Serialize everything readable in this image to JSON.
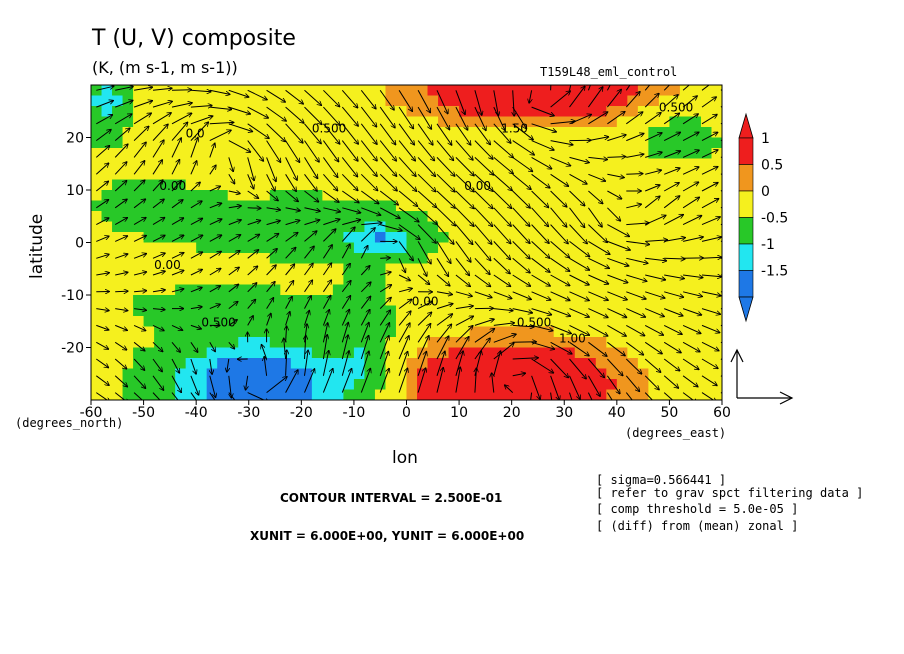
{
  "title": "T (U, V) composite",
  "subtitle": "(K, (m s-1, m s-1))",
  "run_label": "T159L48_eml_control",
  "xlabel": "lon",
  "ylabel": "latitude",
  "x_unit_label": "(degrees_east)",
  "y_unit_label": "(degrees_north)",
  "contour_interval_text": "CONTOUR INTERVAL = 2.500E-01",
  "unit_vector_text": "XUNIT = 6.000E+00, YUNIT = 6.000E+00",
  "info_lines": [
    "[ sigma=0.566441 ]",
    "[ refer to grav spct filtering data ]",
    "[ comp threshold = 5.0e-05 ]",
    "[ (diff) from (mean) zonal ]"
  ],
  "chart_data": {
    "type": "heatmap",
    "xlim": [
      -60,
      60
    ],
    "ylim": [
      -30,
      30
    ],
    "xticks": [
      -60,
      -50,
      -40,
      -30,
      -20,
      -10,
      0,
      10,
      20,
      30,
      40,
      50,
      60
    ],
    "yticks": [
      -20,
      -10,
      0,
      10,
      20
    ],
    "colorbar": {
      "labels": [
        "1",
        "0.5",
        "0",
        "-0.5",
        "-1",
        "-1.5"
      ],
      "levels": [
        -1.5,
        -1,
        -0.5,
        0,
        0.5,
        1
      ],
      "colors": [
        "#1e78e6",
        "#22e6f0",
        "#28c828",
        "#f5f01e",
        "#f0961e",
        "#ee1e1e"
      ]
    },
    "contour_labels": [
      {
        "text": "0.500",
        "x": 48,
        "y": 25
      },
      {
        "text": "0.500",
        "x": -18,
        "y": 21
      },
      {
        "text": "1.50",
        "x": 18,
        "y": 21
      },
      {
        "text": "0.0",
        "x": -42,
        "y": 20
      },
      {
        "text": "0.00",
        "x": -47,
        "y": 10
      },
      {
        "text": "0.00",
        "x": 11,
        "y": 10
      },
      {
        "text": "0.00",
        "x": -48,
        "y": -5
      },
      {
        "text": "0.00",
        "x": 1,
        "y": -12
      },
      {
        "text": "0.500",
        "x": -39,
        "y": -16
      },
      {
        "text": "0.500",
        "x": 21,
        "y": -16
      },
      {
        "text": "1.00",
        "x": 29,
        "y": -19
      }
    ],
    "anomaly_features": [
      {
        "name": "warm north-east",
        "x": 24,
        "y": 27,
        "value": 1.2
      },
      {
        "name": "warm south-east",
        "x": 18,
        "y": -25,
        "value": 1.2
      },
      {
        "name": "cold south-west",
        "x": -29,
        "y": -27,
        "value": -1.5
      },
      {
        "name": "cold equatorial",
        "x": -4,
        "y": 0,
        "value": -0.8
      },
      {
        "name": "cold north-west edge",
        "x": -58,
        "y": 26,
        "value": -0.8
      }
    ]
  }
}
